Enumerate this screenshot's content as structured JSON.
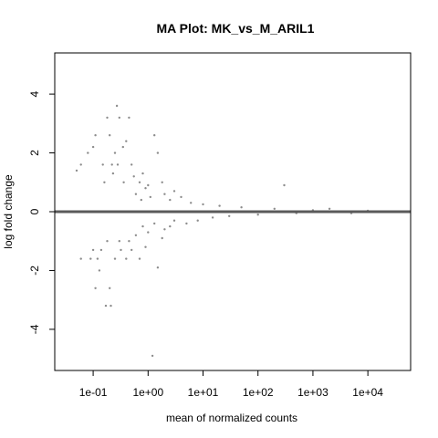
{
  "chart_data": {
    "type": "scatter",
    "title": "MA Plot: MK_vs_M_ARIL1",
    "xlabel": "mean of normalized counts",
    "ylabel": "log fold change",
    "x_scale": "log10",
    "xlim": [
      0.02,
      60000
    ],
    "ylim": [
      -5.4,
      5.4
    ],
    "x_ticks": [
      {
        "value": 0.1,
        "label": "1e-01"
      },
      {
        "value": 1,
        "label": "1e+00"
      },
      {
        "value": 10,
        "label": "1e+01"
      },
      {
        "value": 100,
        "label": "1e+02"
      },
      {
        "value": 1000,
        "label": "1e+03"
      },
      {
        "value": 10000,
        "label": "1e+04"
      }
    ],
    "y_ticks": [
      {
        "value": -4,
        "label": "-4"
      },
      {
        "value": -2,
        "label": "-2"
      },
      {
        "value": 0,
        "label": "0"
      },
      {
        "value": 2,
        "label": "2"
      },
      {
        "value": 4,
        "label": "4"
      }
    ],
    "reference_line": {
      "y": 0,
      "color": "#5a5a5a"
    },
    "point_color": "#8c8c8c",
    "grid": false,
    "points": [
      [
        0.05,
        1.4
      ],
      [
        0.06,
        1.6
      ],
      [
        0.06,
        -1.6
      ],
      [
        0.08,
        2.0
      ],
      [
        0.09,
        -1.6
      ],
      [
        0.1,
        2.2
      ],
      [
        0.1,
        -1.3
      ],
      [
        0.11,
        2.6
      ],
      [
        0.11,
        -2.6
      ],
      [
        0.12,
        -1.6
      ],
      [
        0.13,
        -2.0
      ],
      [
        0.14,
        -1.3
      ],
      [
        0.15,
        1.6
      ],
      [
        0.16,
        1.0
      ],
      [
        0.17,
        -3.2
      ],
      [
        0.18,
        3.2
      ],
      [
        0.18,
        -1.0
      ],
      [
        0.2,
        2.6
      ],
      [
        0.2,
        -2.6
      ],
      [
        0.21,
        -3.2
      ],
      [
        0.22,
        1.6
      ],
      [
        0.23,
        1.3
      ],
      [
        0.25,
        2.0
      ],
      [
        0.25,
        -1.6
      ],
      [
        0.27,
        3.6
      ],
      [
        0.28,
        1.6
      ],
      [
        0.3,
        3.2
      ],
      [
        0.3,
        -1.0
      ],
      [
        0.32,
        -1.3
      ],
      [
        0.35,
        2.2
      ],
      [
        0.36,
        1.0
      ],
      [
        0.4,
        2.4
      ],
      [
        0.4,
        -1.6
      ],
      [
        0.45,
        3.2
      ],
      [
        0.45,
        -1.0
      ],
      [
        0.5,
        1.6
      ],
      [
        0.5,
        -1.3
      ],
      [
        0.55,
        1.2
      ],
      [
        0.6,
        0.6
      ],
      [
        0.6,
        -0.8
      ],
      [
        0.7,
        1.0
      ],
      [
        0.7,
        -1.6
      ],
      [
        0.75,
        0.4
      ],
      [
        0.8,
        1.3
      ],
      [
        0.8,
        -0.5
      ],
      [
        0.9,
        0.8
      ],
      [
        0.9,
        -1.2
      ],
      [
        1.0,
        0.9
      ],
      [
        1.0,
        -0.7
      ],
      [
        1.1,
        0.5
      ],
      [
        1.2,
        -4.9
      ],
      [
        1.3,
        2.6
      ],
      [
        1.3,
        -0.4
      ],
      [
        1.5,
        2.0
      ],
      [
        1.5,
        -1.9
      ],
      [
        1.8,
        1.0
      ],
      [
        1.8,
        -0.9
      ],
      [
        2.0,
        0.6
      ],
      [
        2.0,
        -0.6
      ],
      [
        2.5,
        0.4
      ],
      [
        2.5,
        -0.5
      ],
      [
        3.0,
        0.7
      ],
      [
        3.0,
        -0.3
      ],
      [
        4.0,
        0.5
      ],
      [
        5.0,
        -0.4
      ],
      [
        6.0,
        0.3
      ],
      [
        8.0,
        -0.3
      ],
      [
        10.0,
        0.25
      ],
      [
        15.0,
        -0.2
      ],
      [
        20.0,
        0.2
      ],
      [
        30.0,
        -0.15
      ],
      [
        50.0,
        0.15
      ],
      [
        100.0,
        -0.1
      ],
      [
        200.0,
        0.1
      ],
      [
        300.0,
        0.9
      ],
      [
        500.0,
        -0.05
      ],
      [
        1000.0,
        0.05
      ],
      [
        2000.0,
        0.1
      ],
      [
        5000.0,
        -0.05
      ],
      [
        10000.0,
        0.03
      ]
    ]
  }
}
